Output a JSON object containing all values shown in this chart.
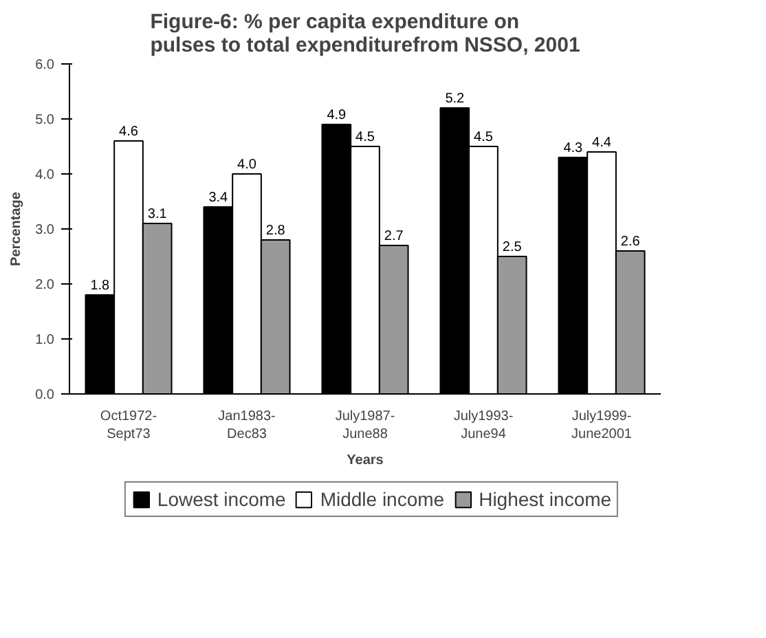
{
  "chart_data": {
    "type": "bar",
    "title": "Figure-6: % per capita expenditure on\npulses to total expenditurefrom NSSO, 2001",
    "xlabel": "Years",
    "ylabel": "Percentage",
    "categories": [
      "Oct1972-\nSept73",
      "Jan1983-\nDec83",
      "July1987-\nJune88",
      "July1993-\nJune94",
      "July1999-\nJune2001"
    ],
    "series": [
      {
        "name": "Lowest income",
        "color": "#000000",
        "values": [
          1.8,
          3.4,
          4.9,
          5.2,
          4.3
        ],
        "value_labels": [
          "1.8",
          "3.4",
          "4.9",
          "5.2",
          "4.3"
        ]
      },
      {
        "name": "Middle income",
        "color": "#ffffff",
        "values": [
          4.6,
          4.0,
          4.5,
          4.5,
          4.4
        ],
        "value_labels": [
          "4.6",
          "4.0",
          "4.5",
          "4.5",
          "4.4"
        ]
      },
      {
        "name": "Highest income",
        "color": "#999999",
        "values": [
          3.1,
          2.8,
          2.7,
          2.5,
          2.6
        ],
        "value_labels": [
          "3.1",
          "2.8",
          "2.7",
          "2.5",
          "2.6"
        ]
      }
    ],
    "ylim": [
      0,
      6
    ],
    "yticks": [
      {
        "value": 0,
        "label": "0.0"
      },
      {
        "value": 1,
        "label": "1.0"
      },
      {
        "value": 2,
        "label": "2.0"
      },
      {
        "value": 3,
        "label": "3.0"
      },
      {
        "value": 4,
        "label": "4.0"
      },
      {
        "value": 5,
        "label": "5.0"
      },
      {
        "value": 6,
        "label": "6.0"
      }
    ],
    "grid": false,
    "legend": "bottom"
  }
}
